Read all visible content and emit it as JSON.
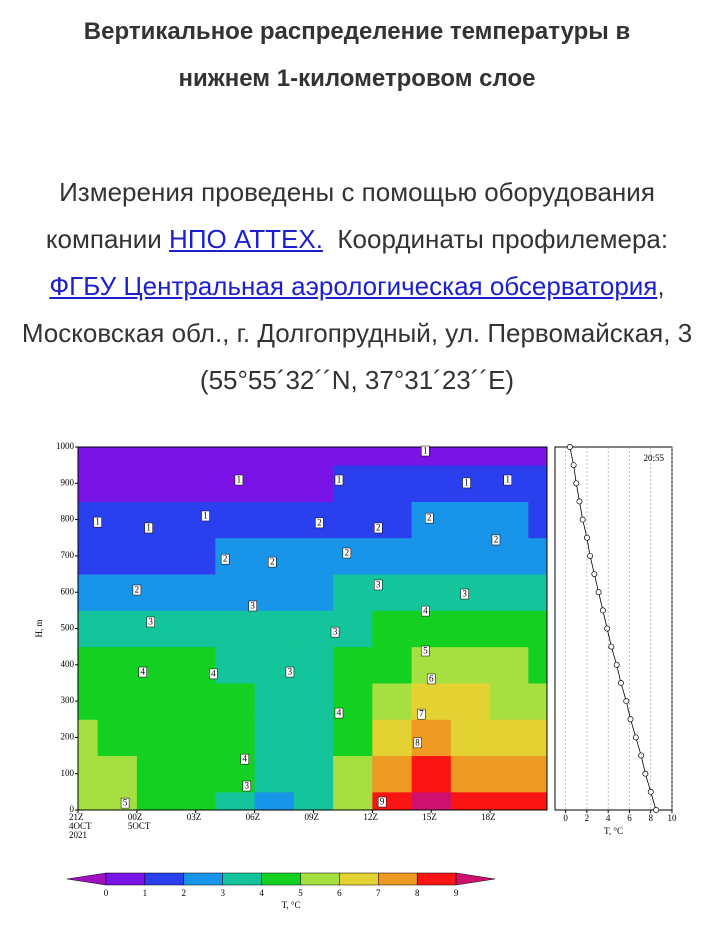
{
  "header": {
    "title": "Вертикальное распределение температуры в нижнем 1-километровом слое"
  },
  "intro": {
    "text1": "Измерения проведены с помощью оборудования компании",
    "link1": "НПО АТТЕХ.",
    "text2": "Координаты профилемера:",
    "link2": "ФГБУ Центральная аэрологическая обсерватория",
    "text3": ", Московская обл., г. Долгопрудный, ул. Первомайская, 3 (55°55´32´´N, 37°31´23´´E)"
  },
  "chart_data": [
    {
      "type": "contour",
      "ylabel": "H, m",
      "x": [
        0,
        2,
        4,
        6,
        8,
        10,
        12,
        14,
        16,
        18,
        20,
        22,
        23.9
      ],
      "y": [
        0,
        100,
        200,
        300,
        400,
        500,
        600,
        700,
        800,
        900,
        1000
      ],
      "z": [
        [
          5.8,
          5.1,
          4.5,
          4.3,
          3.9,
          2.6,
          3.0,
          5.5,
          8.3,
          9.0,
          8.7,
          8.3,
          8.0
        ],
        [
          5.6,
          5.0,
          4.6,
          4.4,
          4.2,
          3.2,
          3.2,
          5.2,
          7.4,
          8.3,
          7.7,
          7.5,
          7.2
        ],
        [
          5.2,
          4.8,
          4.6,
          4.4,
          4.3,
          3.6,
          3.5,
          4.9,
          6.5,
          7.3,
          6.8,
          6.6,
          6.4
        ],
        [
          4.6,
          4.5,
          4.5,
          4.3,
          4.2,
          3.7,
          3.6,
          4.6,
          5.6,
          6.3,
          6.0,
          5.8,
          5.7
        ],
        [
          4.0,
          4.1,
          4.2,
          4.1,
          3.9,
          3.6,
          3.5,
          4.2,
          4.8,
          5.4,
          5.2,
          5.0,
          4.9
        ],
        [
          3.3,
          3.1,
          3.2,
          3.3,
          3.3,
          3.4,
          3.3,
          3.6,
          4.0,
          4.5,
          4.4,
          4.2,
          4.1
        ],
        [
          2.6,
          2.2,
          2.3,
          2.4,
          2.6,
          2.8,
          2.8,
          3.0,
          3.3,
          3.6,
          3.6,
          3.4,
          3.3
        ],
        [
          1.8,
          1.6,
          1.6,
          1.8,
          2.0,
          2.0,
          2.2,
          2.4,
          2.7,
          2.8,
          2.8,
          2.7,
          2.6
        ],
        [
          1.2,
          1.1,
          1.1,
          1.2,
          1.4,
          1.3,
          1.6,
          1.7,
          1.9,
          2.0,
          2.1,
          2.0,
          1.9
        ],
        [
          0.8,
          0.8,
          0.7,
          0.8,
          0.9,
          0.8,
          0.9,
          1.0,
          1.1,
          1.2,
          1.3,
          1.3,
          1.2
        ],
        [
          0.5,
          0.4,
          0.3,
          0.4,
          0.5,
          0.6,
          0.7,
          0.7,
          0.6,
          0.8,
          0.9,
          0.8,
          0.8
        ]
      ],
      "xlim": [
        0,
        23.9
      ],
      "ylim": [
        0,
        1000
      ],
      "xticks": [
        {
          "value": 0,
          "label": "21Z"
        },
        {
          "value": 3,
          "label": "00Z"
        },
        {
          "value": 6,
          "label": "03Z"
        },
        {
          "value": 9,
          "label": "06Z"
        },
        {
          "value": 12,
          "label": "09Z"
        },
        {
          "value": 15,
          "label": "12Z"
        },
        {
          "value": 18,
          "label": "15Z"
        },
        {
          "value": 21,
          "label": "18Z"
        }
      ],
      "date_labels": [
        {
          "value": 0,
          "lines": [
            "4OCT",
            "2021"
          ]
        },
        {
          "value": 3,
          "lines": [
            "5OCT"
          ]
        }
      ],
      "yticks": [
        0,
        100,
        200,
        300,
        400,
        500,
        600,
        700,
        800,
        900,
        1000
      ],
      "levels": [
        0,
        1,
        2,
        3,
        4,
        5,
        6,
        7,
        8,
        9
      ],
      "colors": [
        "#a010c0",
        "#7a14e6",
        "#2a40ee",
        "#1894e8",
        "#14c49a",
        "#14d020",
        "#a6e040",
        "#e4d232",
        "#ee9a22",
        "#fa1414",
        "#d0106e"
      ],
      "colorbar_label": "T, °C",
      "contour_labels": [
        {
          "t": 1.0,
          "h": 793,
          "level": 1
        },
        {
          "t": 3.6,
          "h": 777,
          "level": 1
        },
        {
          "t": 6.5,
          "h": 810,
          "level": 1
        },
        {
          "t": 8.2,
          "h": 909,
          "level": 1
        },
        {
          "t": 13.3,
          "h": 909,
          "level": 1
        },
        {
          "t": 17.7,
          "h": 989,
          "level": 1
        },
        {
          "t": 19.8,
          "h": 901,
          "level": 1
        },
        {
          "t": 21.9,
          "h": 909,
          "level": 1
        },
        {
          "t": 3.0,
          "h": 606,
          "level": 2
        },
        {
          "t": 7.5,
          "h": 691,
          "level": 2
        },
        {
          "t": 9.9,
          "h": 683,
          "level": 2
        },
        {
          "t": 12.3,
          "h": 791,
          "level": 2
        },
        {
          "t": 13.7,
          "h": 708,
          "level": 2
        },
        {
          "t": 15.3,
          "h": 777,
          "level": 2
        },
        {
          "t": 17.9,
          "h": 804,
          "level": 2
        },
        {
          "t": 21.3,
          "h": 744,
          "level": 2
        },
        {
          "t": 3.7,
          "h": 518,
          "level": 3
        },
        {
          "t": 8.9,
          "h": 562,
          "level": 3
        },
        {
          "t": 10.8,
          "h": 380,
          "level": 3
        },
        {
          "t": 13.1,
          "h": 490,
          "level": 3
        },
        {
          "t": 15.3,
          "h": 620,
          "level": 3
        },
        {
          "t": 19.7,
          "h": 595,
          "level": 3
        },
        {
          "t": 8.6,
          "h": 66,
          "level": 3
        },
        {
          "t": 3.3,
          "h": 380,
          "level": 4
        },
        {
          "t": 6.9,
          "h": 375,
          "level": 4
        },
        {
          "t": 8.5,
          "h": 140,
          "level": 4
        },
        {
          "t": 13.3,
          "h": 267,
          "level": 4
        },
        {
          "t": 17.7,
          "h": 548,
          "level": 4
        },
        {
          "t": 2.4,
          "h": 19,
          "level": 5
        },
        {
          "t": 17.7,
          "h": 438,
          "level": 5
        },
        {
          "t": 18.0,
          "h": 361,
          "level": 6
        },
        {
          "t": 17.5,
          "h": 264,
          "level": 7
        },
        {
          "t": 17.3,
          "h": 185,
          "level": 8
        },
        {
          "t": 15.5,
          "h": 22,
          "level": 9
        }
      ]
    },
    {
      "type": "line",
      "time_label": "20:55",
      "xlabel": "T, °C",
      "heights": [
        0,
        50,
        100,
        150,
        200,
        250,
        300,
        350,
        400,
        450,
        500,
        550,
        600,
        650,
        700,
        750,
        800,
        850,
        900,
        950,
        1000
      ],
      "values": [
        8.5,
        8.0,
        7.5,
        7.1,
        6.6,
        6.1,
        5.7,
        5.2,
        4.8,
        4.3,
        3.9,
        3.5,
        3.1,
        2.7,
        2.3,
        2.0,
        1.6,
        1.3,
        1.0,
        0.75,
        0.4
      ],
      "color": "#000000",
      "xlim": [
        -1,
        10
      ],
      "ylim": [
        0,
        1000
      ],
      "xticks": [
        0,
        2,
        4,
        6,
        8,
        10
      ],
      "grid": true
    }
  ]
}
